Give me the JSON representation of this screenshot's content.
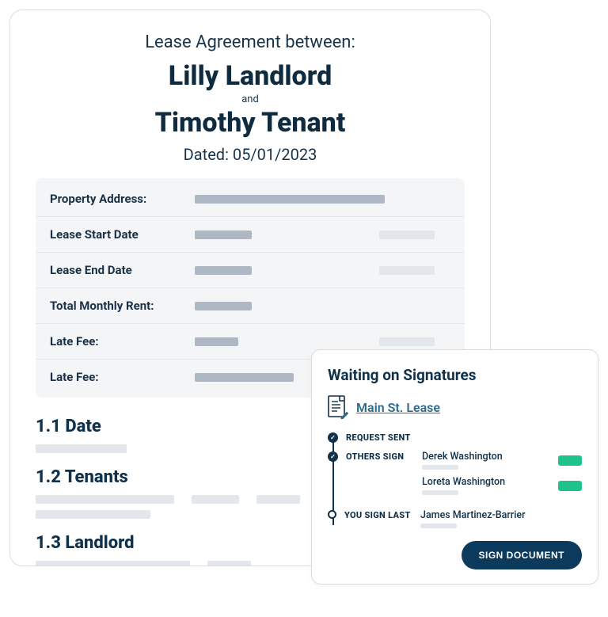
{
  "colors": {
    "text_primary": "#10314a",
    "text_secondary": "#18344a",
    "border": "#d9dde3",
    "panel_bg": "#f3f5f7",
    "bar_dark": "#aeb8c4",
    "bar_light": "#e3e7ec",
    "link": "#2d6a8e",
    "accent_green": "#1ec28b",
    "button_bg": "#0b3a5c"
  },
  "document": {
    "between_label": "Lease Agreement between:",
    "party1": "Lilly Landlord",
    "and_label": "and",
    "party2": "Timothy Tenant",
    "dated_label": "Dated: 05/01/2023",
    "fields": [
      {
        "label": "Property Address:",
        "bar1_w": 240,
        "bar1_color": "dark",
        "bar2_w": 0
      },
      {
        "label": "Lease Start Date",
        "bar1_w": 72,
        "bar1_color": "dark",
        "bar2_w": 70
      },
      {
        "label": "Lease End Date",
        "bar1_w": 72,
        "bar1_color": "dark",
        "bar2_w": 70
      },
      {
        "label": "Total Monthly Rent:",
        "bar1_w": 72,
        "bar1_color": "dark",
        "bar2_w": 0
      },
      {
        "label": "Late Fee:",
        "bar1_w": 55,
        "bar1_color": "dark",
        "bar2_w": 70
      },
      {
        "label": "Late Fee:",
        "bar1_w": 125,
        "bar1_color": "dark",
        "bar2_w": 0
      }
    ],
    "sections": [
      {
        "heading": "1.1 Date",
        "lines": [
          [
            115
          ]
        ]
      },
      {
        "heading": "1.2 Tenants",
        "lines": [
          [
            175,
            60,
            55,
            60
          ],
          [
            145
          ]
        ]
      },
      {
        "heading": "1.3 Landlord",
        "lines": [
          [
            195,
            55
          ]
        ]
      }
    ]
  },
  "signatures": {
    "title": "Waiting on Signatures",
    "lease_link": "Main St. Lease",
    "steps": [
      {
        "status": "done",
        "label": "REQUEST SENT",
        "signers": []
      },
      {
        "status": "done",
        "label": "OTHERS SIGN",
        "signers": [
          {
            "name": "Derek Washington",
            "badge": true
          },
          {
            "name": "Loreta Washington",
            "badge": true
          }
        ]
      },
      {
        "status": "open",
        "label": "YOU SIGN LAST",
        "signers": [
          {
            "name": "James Martinez-Barrier",
            "badge": false
          }
        ]
      }
    ],
    "button_label": "SIGN DOCUMENT"
  }
}
